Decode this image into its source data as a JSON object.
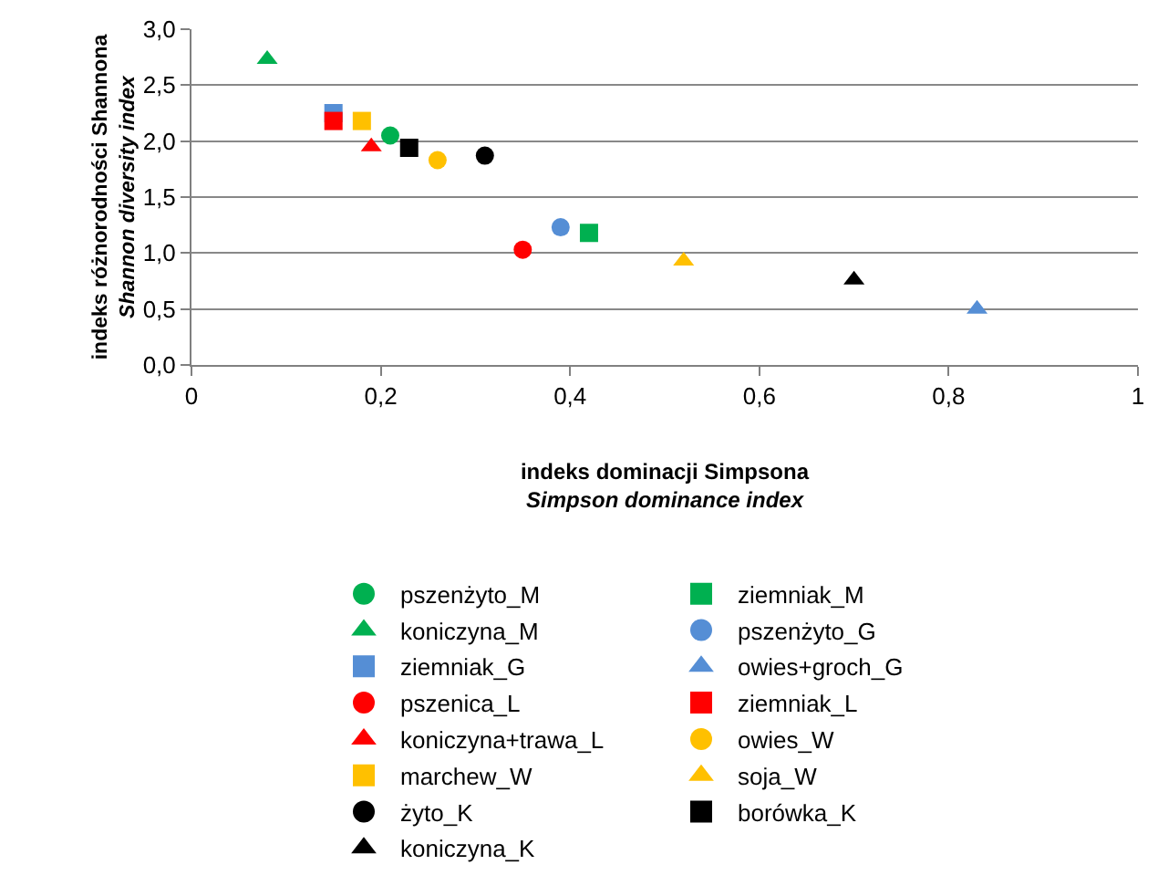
{
  "chart_data": {
    "type": "scatter",
    "xlabel": "indeks dominacji Simpsona\nSimpson dominance index",
    "ylabel": "indeks różnorodności Shannona\nShannon diversity index",
    "xlim": [
      0,
      1
    ],
    "ylim": [
      0,
      3
    ],
    "xticks": [
      0,
      {
        "value": 0.2,
        "label": "0,2"
      },
      {
        "value": 0.4,
        "label": "0,4"
      },
      {
        "value": 0.6,
        "label": "0,6"
      },
      {
        "value": 0.8,
        "label": "0,8"
      },
      1
    ],
    "yticks": [
      {
        "value": 0,
        "label": "0,0"
      },
      {
        "value": 0.5,
        "label": "0,5"
      },
      {
        "value": 1,
        "label": "1,0"
      },
      {
        "value": 1.5,
        "label": "1,5"
      },
      {
        "value": 2,
        "label": "2,0"
      },
      {
        "value": 2.5,
        "label": "2,5"
      },
      {
        "value": 3,
        "label": "3,0"
      }
    ],
    "grid": "y",
    "legend": "bottom",
    "series": [
      {
        "name": "pszenżyto_M",
        "color": "#00b050",
        "marker": "circle",
        "x": [
          0.21
        ],
        "values": [
          2.05
        ]
      },
      {
        "name": "ziemniak_M",
        "color": "#00b050",
        "marker": "square",
        "x": [
          0.42
        ],
        "values": [
          1.18
        ]
      },
      {
        "name": "koniczyna_M",
        "color": "#00b050",
        "marker": "triangle",
        "x": [
          0.08
        ],
        "values": [
          2.73
        ]
      },
      {
        "name": "pszenżyto_G",
        "color": "#558ed5",
        "marker": "circle",
        "x": [
          0.39
        ],
        "values": [
          1.23
        ]
      },
      {
        "name": "ziemniak_G",
        "color": "#558ed5",
        "marker": "square",
        "x": [
          0.15
        ],
        "values": [
          2.25
        ]
      },
      {
        "name": "owies+groch_G",
        "color": "#558ed5",
        "marker": "triangle",
        "x": [
          0.83
        ],
        "values": [
          0.5
        ]
      },
      {
        "name": "pszenica_L",
        "color": "#ff0000",
        "marker": "circle",
        "x": [
          0.35
        ],
        "values": [
          1.03
        ]
      },
      {
        "name": "ziemniak_L",
        "color": "#ff0000",
        "marker": "square",
        "x": [
          0.15
        ],
        "values": [
          2.18
        ]
      },
      {
        "name": "koniczyna+trawa_L",
        "color": "#ff0000",
        "marker": "triangle",
        "x": [
          0.19
        ],
        "values": [
          1.95
        ]
      },
      {
        "name": "owies_W",
        "color": "#ffc000",
        "marker": "circle",
        "x": [
          0.26
        ],
        "values": [
          1.83
        ]
      },
      {
        "name": "marchew_W",
        "color": "#ffc000",
        "marker": "square",
        "x": [
          0.18
        ],
        "values": [
          2.18
        ]
      },
      {
        "name": "soja_W",
        "color": "#ffc000",
        "marker": "triangle",
        "x": [
          0.52
        ],
        "values": [
          0.93
        ]
      },
      {
        "name": "żyto_K",
        "color": "#000000",
        "marker": "circle",
        "x": [
          0.31
        ],
        "values": [
          1.87
        ]
      },
      {
        "name": "borówka_K",
        "color": "#000000",
        "marker": "square",
        "x": [
          0.23
        ],
        "values": [
          1.94
        ]
      },
      {
        "name": "koniczyna_K",
        "color": "#000000",
        "marker": "triangle",
        "x": [
          0.7
        ],
        "values": [
          0.76
        ]
      }
    ]
  }
}
